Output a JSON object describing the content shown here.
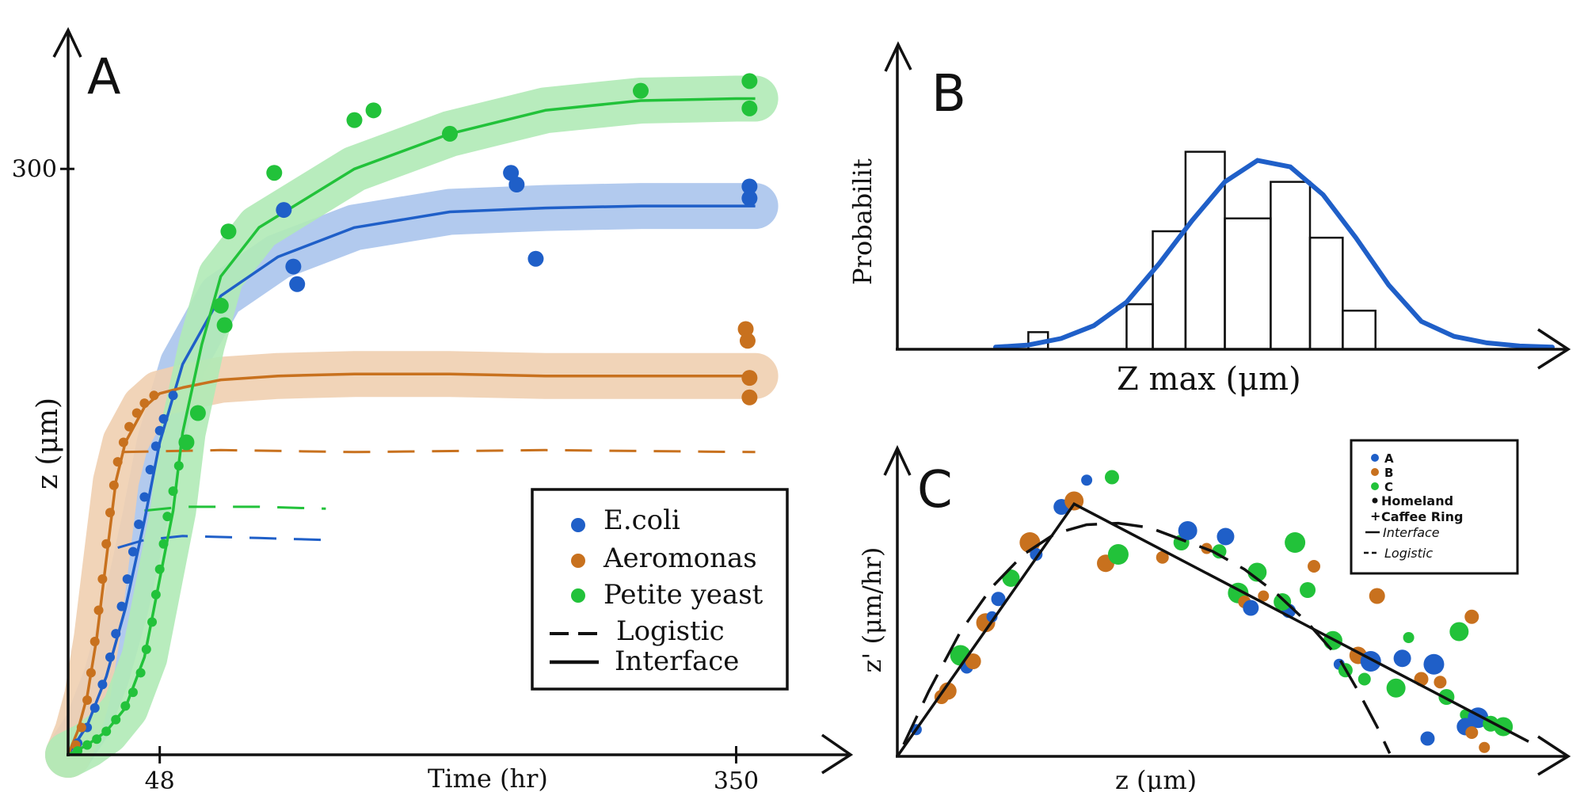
{
  "colors": {
    "ink": "#111111",
    "ecoli": "#1f5fc8",
    "ecoli_band": "#aac4ec",
    "aeromonas": "#c8711e",
    "aeromonas_band": "#efcfb0",
    "yeast": "#22c23a",
    "yeast_band": "#b0eab6",
    "curve": "#1f5fc8"
  },
  "chart_data": [
    {
      "panel": "A",
      "type": "line",
      "title": "",
      "xlabel": "Time (hr)",
      "ylabel": "z (μm)",
      "xlim": [
        0,
        400
      ],
      "ylim": [
        0,
        350
      ],
      "x_ticks": [
        {
          "value": 48,
          "label": "48"
        },
        {
          "value": 350,
          "label": "350"
        }
      ],
      "y_ticks": [
        {
          "value": 300,
          "label": "300"
        }
      ],
      "legend_position": "bottom-right",
      "legend": [
        {
          "label": "E.coli",
          "kind": "dot",
          "color": "#1f5fc8"
        },
        {
          "label": "Aeromonas",
          "kind": "dot",
          "color": "#c8711e"
        },
        {
          "label": "Petite yeast",
          "kind": "dot",
          "color": "#22c23a"
        },
        {
          "label": "Logistic",
          "kind": "dashed"
        },
        {
          "label": "Interface",
          "kind": "solid"
        }
      ],
      "series": [
        {
          "key": "ecoli",
          "color": "#1f5fc8",
          "interface": {
            "x": [
              0,
              10,
              20,
              30,
              40,
              48,
              60,
              80,
              110,
              150,
              200,
              250,
              300,
              350,
              360
            ],
            "y": [
              0,
              15,
              40,
              75,
              120,
              160,
              200,
              235,
              255,
              270,
              278,
              280,
              281,
              281,
              281
            ]
          },
          "logistic": {
            "x": [
              26,
              40,
              60,
              100,
              135
            ],
            "y": [
              106,
              110,
              112,
              111,
              110
            ]
          },
          "points": [
            {
              "x": 5,
              "y": 6
            },
            {
              "x": 10,
              "y": 14
            },
            {
              "x": 14,
              "y": 24
            },
            {
              "x": 18,
              "y": 36
            },
            {
              "x": 22,
              "y": 50
            },
            {
              "x": 25,
              "y": 62
            },
            {
              "x": 28,
              "y": 76
            },
            {
              "x": 31,
              "y": 90
            },
            {
              "x": 34,
              "y": 104
            },
            {
              "x": 37,
              "y": 118
            },
            {
              "x": 40,
              "y": 132
            },
            {
              "x": 43,
              "y": 146
            },
            {
              "x": 46,
              "y": 158
            },
            {
              "x": 48,
              "y": 166
            },
            {
              "x": 50,
              "y": 172
            },
            {
              "x": 55,
              "y": 184
            },
            {
              "x": 113,
              "y": 279
            },
            {
              "x": 118,
              "y": 250
            },
            {
              "x": 120,
              "y": 241
            },
            {
              "x": 232,
              "y": 298
            },
            {
              "x": 235,
              "y": 292
            },
            {
              "x": 245,
              "y": 254
            },
            {
              "x": 357,
              "y": 291
            },
            {
              "x": 357,
              "y": 285
            }
          ]
        },
        {
          "key": "aeromonas",
          "color": "#c8711e",
          "interface": {
            "x": [
              0,
              5,
              10,
              15,
              20,
              25,
              30,
              40,
              48,
              60,
              80,
              110,
              150,
              200,
              250,
              300,
              350,
              360
            ],
            "y": [
              0,
              12,
              30,
              60,
              100,
              140,
              160,
              178,
              185,
              188,
              192,
              194,
              195,
              195,
              194,
              194,
              194,
              194
            ]
          },
          "logistic": {
            "x": [
              28,
              80,
              150,
              250,
              360
            ],
            "y": [
              155,
              156,
              155,
              156,
              155
            ]
          },
          "points": [
            {
              "x": 4,
              "y": 5
            },
            {
              "x": 7,
              "y": 14
            },
            {
              "x": 10,
              "y": 28
            },
            {
              "x": 12,
              "y": 42
            },
            {
              "x": 14,
              "y": 58
            },
            {
              "x": 16,
              "y": 74
            },
            {
              "x": 18,
              "y": 90
            },
            {
              "x": 20,
              "y": 108
            },
            {
              "x": 22,
              "y": 124
            },
            {
              "x": 24,
              "y": 138
            },
            {
              "x": 26,
              "y": 150
            },
            {
              "x": 29,
              "y": 160
            },
            {
              "x": 32,
              "y": 168
            },
            {
              "x": 36,
              "y": 175
            },
            {
              "x": 40,
              "y": 180
            },
            {
              "x": 45,
              "y": 184
            },
            {
              "x": 355,
              "y": 218
            },
            {
              "x": 356,
              "y": 212
            },
            {
              "x": 357,
              "y": 193
            },
            {
              "x": 357,
              "y": 183
            }
          ]
        },
        {
          "key": "yeast",
          "color": "#22c23a",
          "interface": {
            "x": [
              0,
              10,
              20,
              30,
              40,
              48,
              55,
              60,
              70,
              80,
              100,
              150,
              200,
              250,
              300,
              350,
              360
            ],
            "y": [
              0,
              5,
              12,
              24,
              50,
              90,
              125,
              165,
              210,
              245,
              270,
              300,
              318,
              330,
              335,
              336,
              336
            ]
          },
          "logistic": {
            "x": [
              40,
              60,
              100,
              135
            ],
            "y": [
              125,
              127,
              127,
              126
            ]
          },
          "points": [
            {
              "x": 5,
              "y": 2
            },
            {
              "x": 10,
              "y": 5
            },
            {
              "x": 15,
              "y": 8
            },
            {
              "x": 20,
              "y": 12
            },
            {
              "x": 25,
              "y": 18
            },
            {
              "x": 30,
              "y": 25
            },
            {
              "x": 34,
              "y": 32
            },
            {
              "x": 38,
              "y": 42
            },
            {
              "x": 41,
              "y": 54
            },
            {
              "x": 44,
              "y": 68
            },
            {
              "x": 46,
              "y": 82
            },
            {
              "x": 48,
              "y": 95
            },
            {
              "x": 50,
              "y": 108
            },
            {
              "x": 52,
              "y": 122
            },
            {
              "x": 55,
              "y": 135
            },
            {
              "x": 58,
              "y": 148
            },
            {
              "x": 62,
              "y": 160
            },
            {
              "x": 68,
              "y": 175
            },
            {
              "x": 80,
              "y": 230
            },
            {
              "x": 82,
              "y": 220
            },
            {
              "x": 84,
              "y": 268
            },
            {
              "x": 108,
              "y": 298
            },
            {
              "x": 150,
              "y": 325
            },
            {
              "x": 160,
              "y": 330
            },
            {
              "x": 200,
              "y": 318
            },
            {
              "x": 300,
              "y": 340
            },
            {
              "x": 357,
              "y": 345
            },
            {
              "x": 357,
              "y": 331
            }
          ]
        }
      ]
    },
    {
      "panel": "B",
      "type": "bar",
      "title": "",
      "xlabel": "Z max (μm)",
      "ylabel": "Probabilit",
      "xlim": [
        0,
        10
      ],
      "ylim": [
        0,
        1
      ],
      "bins": [
        {
          "x0": 2.0,
          "x1": 2.3,
          "value": 0.08
        },
        {
          "x0": 2.3,
          "x1": 3.5,
          "value": 0.0
        },
        {
          "x0": 3.5,
          "x1": 3.9,
          "value": 0.21
        },
        {
          "x0": 3.9,
          "x1": 4.4,
          "value": 0.55
        },
        {
          "x0": 4.4,
          "x1": 5.0,
          "value": 0.92
        },
        {
          "x0": 5.0,
          "x1": 5.7,
          "value": 0.61
        },
        {
          "x0": 5.7,
          "x1": 6.3,
          "value": 0.78
        },
        {
          "x0": 6.3,
          "x1": 6.8,
          "value": 0.52
        },
        {
          "x0": 6.8,
          "x1": 7.3,
          "value": 0.18
        },
        {
          "x0": 7.3,
          "x1": 8.0,
          "value": 0.0
        }
      ],
      "fit": {
        "x": [
          1.5,
          2.0,
          2.5,
          3.0,
          3.5,
          4.0,
          4.5,
          5.0,
          5.5,
          6.0,
          6.5,
          7.0,
          7.5,
          8.0,
          8.5,
          9.0,
          9.5,
          10.0
        ],
        "y": [
          0.01,
          0.02,
          0.05,
          0.11,
          0.22,
          0.4,
          0.6,
          0.78,
          0.88,
          0.85,
          0.72,
          0.52,
          0.3,
          0.13,
          0.06,
          0.03,
          0.015,
          0.01
        ]
      }
    },
    {
      "panel": "C",
      "type": "scatter",
      "title": "",
      "xlabel": "z (μm)",
      "ylabel": "z' (μm/hr)",
      "xlim": [
        0,
        10
      ],
      "ylim": [
        0,
        10
      ],
      "legend_position": "top-right",
      "legend": [
        {
          "label": "A",
          "kind": "dot",
          "color": "#1f5fc8"
        },
        {
          "label": "B",
          "kind": "dot",
          "color": "#c8711e"
        },
        {
          "label": "C",
          "kind": "dot",
          "color": "#22c23a"
        },
        {
          "label": "Homeland",
          "kind": "small-dot"
        },
        {
          "label": "Caffee Ring",
          "kind": "plus"
        },
        {
          "label": "Interface",
          "kind": "solid"
        },
        {
          "label": "Logistic",
          "kind": "dashed"
        }
      ],
      "interface": {
        "x": [
          0,
          2.8,
          10.0
        ],
        "y": [
          0,
          8.5,
          0.5
        ]
      },
      "logistic": {
        "x": [
          0.1,
          0.5,
          1.0,
          1.5,
          2.0,
          2.5,
          3.0,
          3.5,
          4.0,
          4.5,
          5.0,
          5.5,
          6.0,
          6.5,
          7.0,
          7.3,
          7.6,
          7.8
        ],
        "y": [
          0.4,
          2.2,
          4.2,
          5.7,
          6.8,
          7.5,
          7.8,
          7.85,
          7.7,
          7.3,
          6.9,
          6.3,
          5.5,
          4.5,
          3.3,
          2.2,
          1.0,
          0.1
        ]
      },
      "points": [
        {
          "x": 0.3,
          "y": 0.9,
          "s": "A"
        },
        {
          "x": 0.7,
          "y": 2.0,
          "s": "B"
        },
        {
          "x": 0.8,
          "y": 2.2,
          "s": "B"
        },
        {
          "x": 1.0,
          "y": 3.4,
          "s": "C"
        },
        {
          "x": 1.1,
          "y": 3.0,
          "s": "A"
        },
        {
          "x": 1.2,
          "y": 3.2,
          "s": "B"
        },
        {
          "x": 1.4,
          "y": 4.5,
          "s": "B"
        },
        {
          "x": 1.5,
          "y": 4.7,
          "s": "A"
        },
        {
          "x": 1.6,
          "y": 5.3,
          "s": "A"
        },
        {
          "x": 1.8,
          "y": 6.0,
          "s": "C"
        },
        {
          "x": 2.1,
          "y": 7.2,
          "s": "B"
        },
        {
          "x": 2.2,
          "y": 6.8,
          "s": "A"
        },
        {
          "x": 2.6,
          "y": 8.4,
          "s": "A"
        },
        {
          "x": 2.8,
          "y": 8.6,
          "s": "B"
        },
        {
          "x": 3.0,
          "y": 9.3,
          "s": "A"
        },
        {
          "x": 3.4,
          "y": 9.4,
          "s": "C"
        },
        {
          "x": 3.3,
          "y": 6.5,
          "s": "B"
        },
        {
          "x": 3.5,
          "y": 6.8,
          "s": "C"
        },
        {
          "x": 4.2,
          "y": 6.7,
          "s": "B"
        },
        {
          "x": 4.5,
          "y": 7.2,
          "s": "C"
        },
        {
          "x": 4.6,
          "y": 7.6,
          "s": "A"
        },
        {
          "x": 4.9,
          "y": 7.0,
          "s": "B"
        },
        {
          "x": 5.1,
          "y": 6.9,
          "s": "C"
        },
        {
          "x": 5.2,
          "y": 7.4,
          "s": "A"
        },
        {
          "x": 5.4,
          "y": 5.5,
          "s": "C"
        },
        {
          "x": 5.5,
          "y": 5.2,
          "s": "B"
        },
        {
          "x": 5.6,
          "y": 5.0,
          "s": "A"
        },
        {
          "x": 5.7,
          "y": 6.2,
          "s": "C"
        },
        {
          "x": 5.8,
          "y": 5.4,
          "s": "B"
        },
        {
          "x": 6.2,
          "y": 4.9,
          "s": "A"
        },
        {
          "x": 6.1,
          "y": 5.2,
          "s": "C"
        },
        {
          "x": 6.3,
          "y": 7.2,
          "s": "C"
        },
        {
          "x": 6.6,
          "y": 6.4,
          "s": "B"
        },
        {
          "x": 6.5,
          "y": 5.6,
          "s": "C"
        },
        {
          "x": 6.9,
          "y": 3.9,
          "s": "C"
        },
        {
          "x": 7.0,
          "y": 3.1,
          "s": "A"
        },
        {
          "x": 7.1,
          "y": 2.9,
          "s": "C"
        },
        {
          "x": 7.3,
          "y": 3.4,
          "s": "B"
        },
        {
          "x": 7.5,
          "y": 3.2,
          "s": "A"
        },
        {
          "x": 7.4,
          "y": 2.6,
          "s": "C"
        },
        {
          "x": 7.6,
          "y": 5.4,
          "s": "B"
        },
        {
          "x": 7.9,
          "y": 2.3,
          "s": "C"
        },
        {
          "x": 8.1,
          "y": 4.0,
          "s": "C"
        },
        {
          "x": 8.3,
          "y": 2.6,
          "s": "B"
        },
        {
          "x": 8.0,
          "y": 3.3,
          "s": "A"
        },
        {
          "x": 8.5,
          "y": 3.1,
          "s": "A"
        },
        {
          "x": 8.6,
          "y": 2.5,
          "s": "B"
        },
        {
          "x": 8.7,
          "y": 2.0,
          "s": "C"
        },
        {
          "x": 8.9,
          "y": 4.2,
          "s": "C"
        },
        {
          "x": 9.0,
          "y": 1.4,
          "s": "C"
        },
        {
          "x": 9.1,
          "y": 4.7,
          "s": "B"
        },
        {
          "x": 9.0,
          "y": 1.0,
          "s": "A"
        },
        {
          "x": 9.2,
          "y": 1.3,
          "s": "A"
        },
        {
          "x": 9.1,
          "y": 0.8,
          "s": "B"
        },
        {
          "x": 9.4,
          "y": 1.1,
          "s": "C"
        },
        {
          "x": 9.6,
          "y": 1.0,
          "s": "C"
        },
        {
          "x": 9.3,
          "y": 0.3,
          "s": "B"
        },
        {
          "x": 8.4,
          "y": 0.6,
          "s": "A"
        }
      ]
    }
  ],
  "panels": {
    "A": {
      "letter": "A"
    },
    "B": {
      "letter": "B"
    },
    "C": {
      "letter": "C"
    }
  }
}
